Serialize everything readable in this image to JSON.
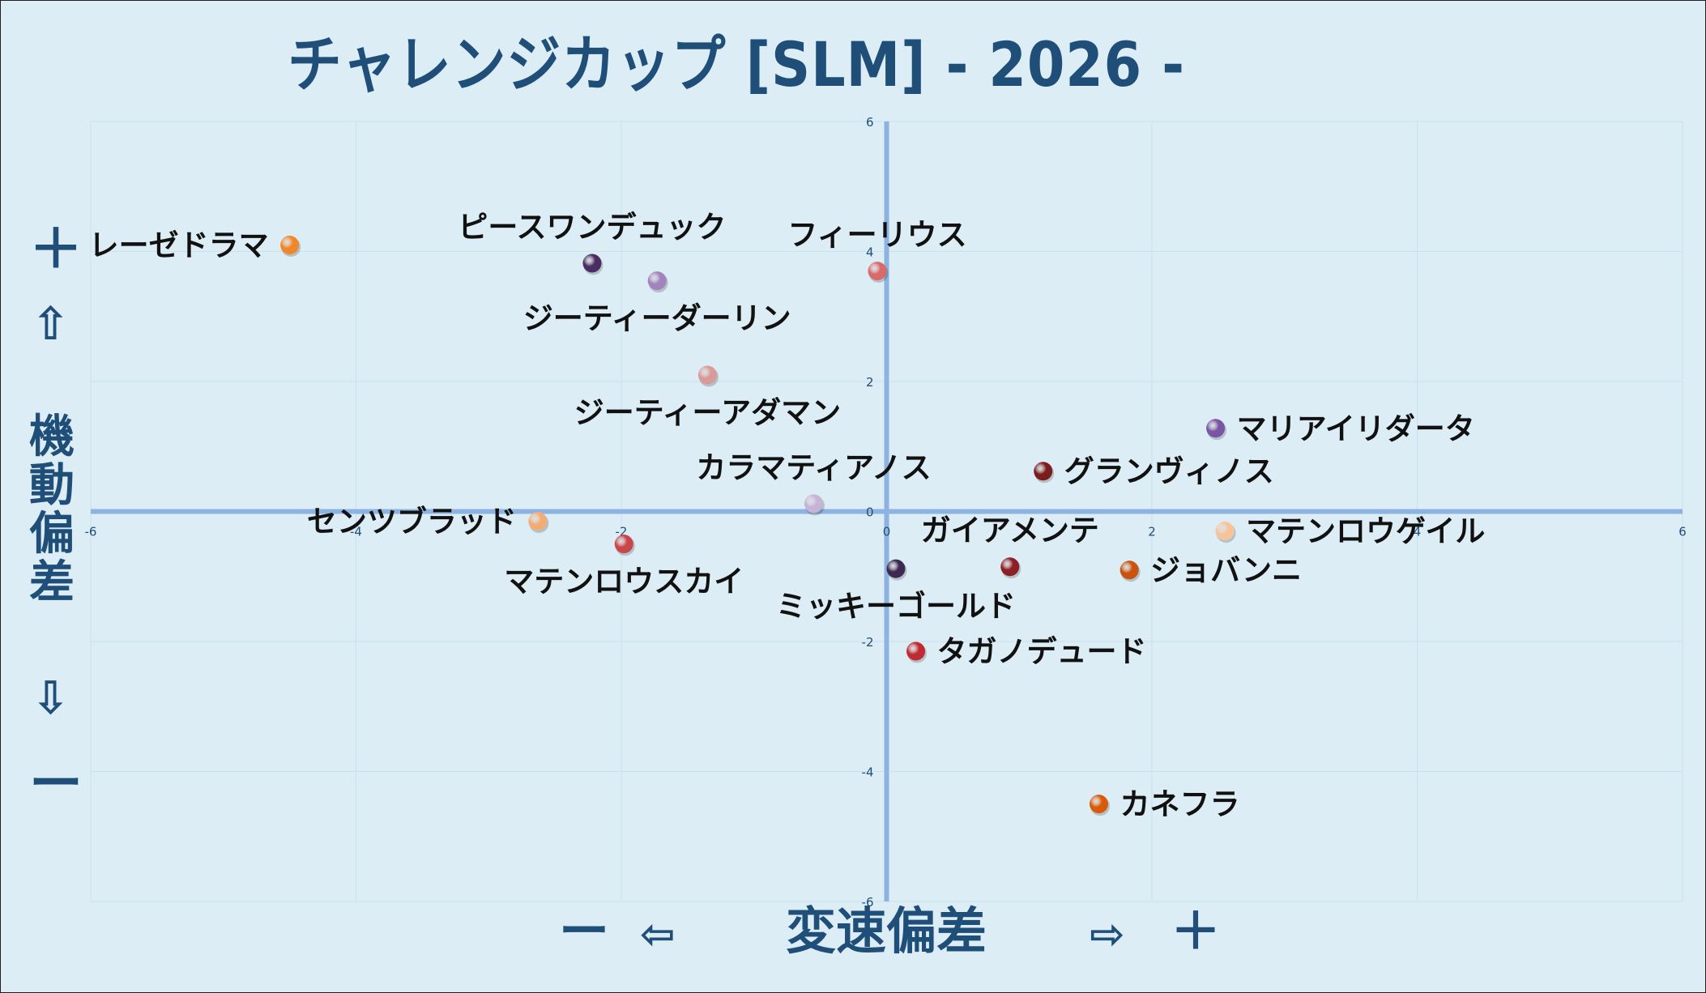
{
  "title": "チャレンジカップ [SLM]  - 2026 -",
  "y_axis_label": {
    "plus": "＋",
    "up_arrow": "⇧",
    "text": "機動偏差",
    "down_arrow": "⇩",
    "minus": "ー"
  },
  "x_axis_label": {
    "minus": "ー",
    "left_arrow": "⇦",
    "text": "変速偏差",
    "right_arrow": "⇨",
    "plus": "＋"
  },
  "chart_data": {
    "type": "scatter",
    "title": "チャレンジカップ [SLM]  - 2026 -",
    "xlabel": "変速偏差",
    "ylabel": "機動偏差",
    "xlim": [
      -6,
      6
    ],
    "ylim": [
      -6,
      6
    ],
    "x_ticks": [
      -6,
      -4,
      -2,
      0,
      2,
      4,
      6
    ],
    "y_ticks": [
      -6,
      -4,
      -2,
      0,
      2,
      4,
      6
    ],
    "grid": true,
    "points": [
      {
        "label": "レーゼドラマ",
        "x": -4.5,
        "y": 4.1,
        "color": "#f0882a",
        "label_pos": "left"
      },
      {
        "label": "ピースワンデュック",
        "x": -2.22,
        "y": 3.82,
        "color": "#4a2d62",
        "label_pos": "top"
      },
      {
        "label": "ジーティーダーリン",
        "x": -1.73,
        "y": 3.55,
        "color": "#a184bc",
        "label_pos": "bottom"
      },
      {
        "label": "フィーリウス",
        "x": -0.07,
        "y": 3.7,
        "color": "#d96a6a",
        "label_pos": "top"
      },
      {
        "label": "ジーティーアダマン",
        "x": -1.35,
        "y": 2.1,
        "color": "#d99a9a",
        "label_pos": "bottom"
      },
      {
        "label": "マリアイリダータ",
        "x": 2.48,
        "y": 1.28,
        "color": "#7a56a2",
        "label_pos": "right"
      },
      {
        "label": "グランヴィノス",
        "x": 1.18,
        "y": 0.62,
        "color": "#7b1d1d",
        "label_pos": "right"
      },
      {
        "label": "カラマティアノス",
        "x": -0.55,
        "y": 0.12,
        "color": "#c5b4d6",
        "label_pos": "top"
      },
      {
        "label": "センツブラッド",
        "x": -2.63,
        "y": -0.15,
        "color": "#f2ad76",
        "label_pos": "left"
      },
      {
        "label": "マテンロウスカイ",
        "x": -1.98,
        "y": -0.5,
        "color": "#c9474b",
        "label_pos": "bottom"
      },
      {
        "label": "マテンロウゲイル",
        "x": 2.55,
        "y": -0.3,
        "color": "#f7c39b",
        "label_pos": "right"
      },
      {
        "label": "ガイアメンテ",
        "x": 0.93,
        "y": -0.85,
        "color": "#8e1f26",
        "label_pos": "top"
      },
      {
        "label": "ジョバンニ",
        "x": 1.83,
        "y": -0.9,
        "color": "#c9520d",
        "label_pos": "right"
      },
      {
        "label": "ミッキーゴールド",
        "x": 0.07,
        "y": -0.88,
        "color": "#3d2a52",
        "label_pos": "bottom"
      },
      {
        "label": "タガノデュード",
        "x": 0.22,
        "y": -2.15,
        "color": "#c22a32",
        "label_pos": "right"
      },
      {
        "label": "カネフラ",
        "x": 1.6,
        "y": -4.5,
        "color": "#d95a0b",
        "label_pos": "right"
      }
    ]
  },
  "colors": {
    "background": "#dcedf5",
    "axis_line": "#8db3e2",
    "grid_line": "#c9e1ee",
    "tick_text": "#1f4e79",
    "title_text": "#1f4e79"
  }
}
